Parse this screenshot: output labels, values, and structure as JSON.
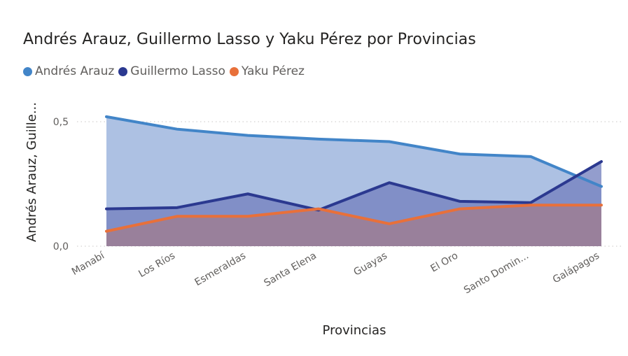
{
  "chart_data": {
    "type": "area",
    "title": "Andrés Arauz, Guillermo Lasso y Yaku Pérez por Provincias",
    "xlabel": "Provincias",
    "ylabel": "Andrés Arauz, Guille...",
    "categories": [
      "Manabí",
      "Los Ríos",
      "Esmeraldas",
      "Santa Elena",
      "Guayas",
      "El Oro",
      "Santo Domin...",
      "Galápagos"
    ],
    "ylim": [
      0,
      0.5
    ],
    "yticks": [
      0,
      0.5
    ],
    "ytick_labels": [
      "0,0",
      "0,5"
    ],
    "grid": true,
    "legend_position": "top-left",
    "series": [
      {
        "name": "Andrés Arauz",
        "color": "#4285c8",
        "fill": "#adc1e3",
        "values": [
          0.52,
          0.47,
          0.445,
          0.43,
          0.42,
          0.37,
          0.36,
          0.24
        ]
      },
      {
        "name": "Guillermo Lasso",
        "color": "#2b3990",
        "fill": "#7581bf",
        "values": [
          0.15,
          0.155,
          0.21,
          0.145,
          0.255,
          0.18,
          0.175,
          0.34
        ]
      },
      {
        "name": "Yaku Pérez",
        "color": "#e8703a",
        "fill": "#a8777f",
        "values": [
          0.06,
          0.12,
          0.12,
          0.15,
          0.09,
          0.15,
          0.165,
          0.165
        ]
      }
    ]
  }
}
